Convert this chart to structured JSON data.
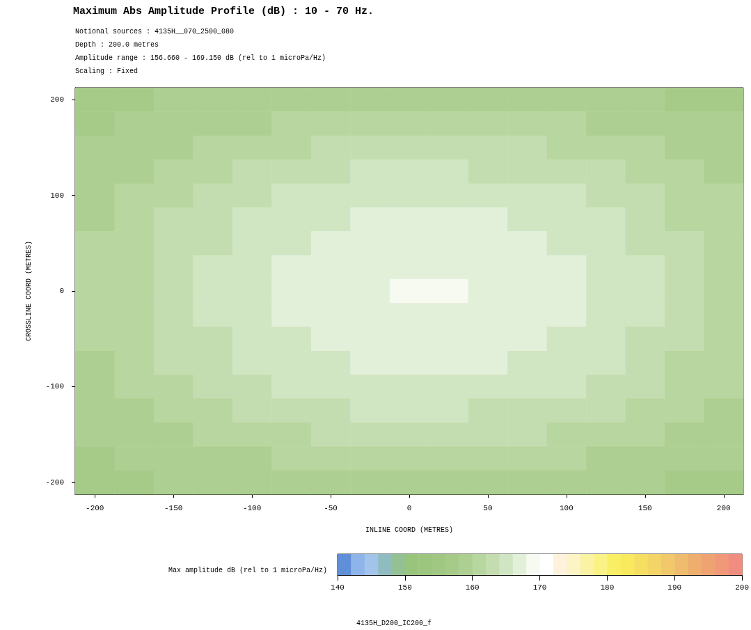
{
  "chart_data": {
    "type": "heatmap",
    "title": "Maximum Abs Amplitude Profile (dB) : 10 - 70 Hz.",
    "subtitle": "Notional sources : 4135H__070_2500_080\nDepth : 200.0 metres\nAmplitude range : 156.660 - 169.150 dB (rel to 1 microPa/Hz)\nScaling : Fixed",
    "xlabel": "INLINE COORD (METRES)",
    "ylabel": "CROSSLINE COORD (METRES)",
    "clabel": "Max amplitude dB (rel to 1 microPa/Hz)",
    "annotations": [
      "4135H_D200_IC200_f"
    ],
    "categories": [
      "-200",
      null,
      "-150",
      null,
      "-100",
      null,
      "-50",
      null,
      "0",
      null,
      "50",
      null,
      "100",
      null,
      "150",
      null,
      "200"
    ],
    "y_categories": [
      "200",
      null,
      null,
      null,
      "100",
      null,
      null,
      null,
      "0",
      null,
      null,
      null,
      "-100",
      null,
      null,
      null,
      "-200"
    ],
    "clim": [
      140,
      200
    ],
    "cticks": [
      140,
      150,
      160,
      170,
      180,
      190,
      200
    ],
    "colors": [
      "#5f8fd8",
      "#8fb4ea",
      "#a2c4ea",
      "#8fbcc0",
      "#93c193",
      "#99c47c",
      "#9cc67e",
      "#a0c882",
      "#a6cb89",
      "#adcf91",
      "#b8d69f",
      "#c4ddb0",
      "#d0e5c2",
      "#e2efd9",
      "#f6faf0",
      "#ffffff",
      "#fdf3dd",
      "#fcf4c4",
      "#fbf3a4",
      "#fbf285",
      "#f9ef66",
      "#f8ea5c",
      "#f6df60",
      "#f3d466",
      "#f1c86a",
      "#efbb6c",
      "#eeae6e",
      "#efa272",
      "#f09878",
      "#f08c80"
    ],
    "cells": [
      [
        157,
        157,
        159,
        159,
        159,
        159,
        159,
        159,
        159,
        159,
        159,
        159,
        159,
        159,
        159,
        157,
        157
      ],
      [
        157,
        159,
        159,
        159,
        159,
        161,
        161,
        161,
        161,
        161,
        161,
        161,
        161,
        159,
        159,
        159,
        159
      ],
      [
        159,
        159,
        159,
        161,
        161,
        161,
        163,
        163,
        163,
        163,
        163,
        163,
        161,
        161,
        161,
        159,
        159
      ],
      [
        159,
        159,
        161,
        161,
        163,
        163,
        163,
        165,
        165,
        165,
        163,
        163,
        163,
        163,
        161,
        161,
        159
      ],
      [
        159,
        161,
        161,
        163,
        163,
        165,
        165,
        165,
        165,
        165,
        165,
        165,
        165,
        163,
        163,
        161,
        161
      ],
      [
        159,
        161,
        163,
        163,
        165,
        165,
        165,
        167,
        167,
        167,
        167,
        165,
        165,
        165,
        163,
        161,
        161
      ],
      [
        161,
        161,
        163,
        163,
        165,
        165,
        167,
        167,
        167,
        167,
        167,
        167,
        165,
        165,
        163,
        163,
        161
      ],
      [
        161,
        161,
        163,
        165,
        165,
        167,
        167,
        167,
        167,
        167,
        167,
        167,
        167,
        165,
        165,
        163,
        161
      ],
      [
        161,
        161,
        163,
        165,
        165,
        167,
        167,
        167,
        169,
        169,
        167,
        167,
        167,
        165,
        165,
        163,
        161
      ],
      [
        161,
        161,
        163,
        165,
        165,
        167,
        167,
        167,
        167,
        167,
        167,
        167,
        167,
        165,
        165,
        163,
        161
      ],
      [
        161,
        161,
        163,
        163,
        165,
        165,
        167,
        167,
        167,
        167,
        167,
        167,
        165,
        165,
        163,
        163,
        161
      ],
      [
        159,
        161,
        163,
        163,
        165,
        165,
        165,
        167,
        167,
        167,
        167,
        165,
        165,
        165,
        163,
        161,
        161
      ],
      [
        159,
        161,
        161,
        163,
        163,
        165,
        165,
        165,
        165,
        165,
        165,
        165,
        165,
        163,
        163,
        161,
        161
      ],
      [
        159,
        159,
        161,
        161,
        163,
        163,
        163,
        165,
        165,
        165,
        163,
        163,
        163,
        163,
        161,
        161,
        159
      ],
      [
        159,
        159,
        159,
        161,
        161,
        161,
        163,
        163,
        163,
        163,
        163,
        163,
        161,
        161,
        161,
        159,
        159
      ],
      [
        157,
        159,
        159,
        159,
        159,
        161,
        161,
        161,
        161,
        161,
        161,
        161,
        161,
        159,
        159,
        159,
        159
      ],
      [
        157,
        157,
        159,
        159,
        159,
        159,
        159,
        159,
        159,
        159,
        159,
        159,
        159,
        159,
        159,
        157,
        157
      ]
    ]
  }
}
